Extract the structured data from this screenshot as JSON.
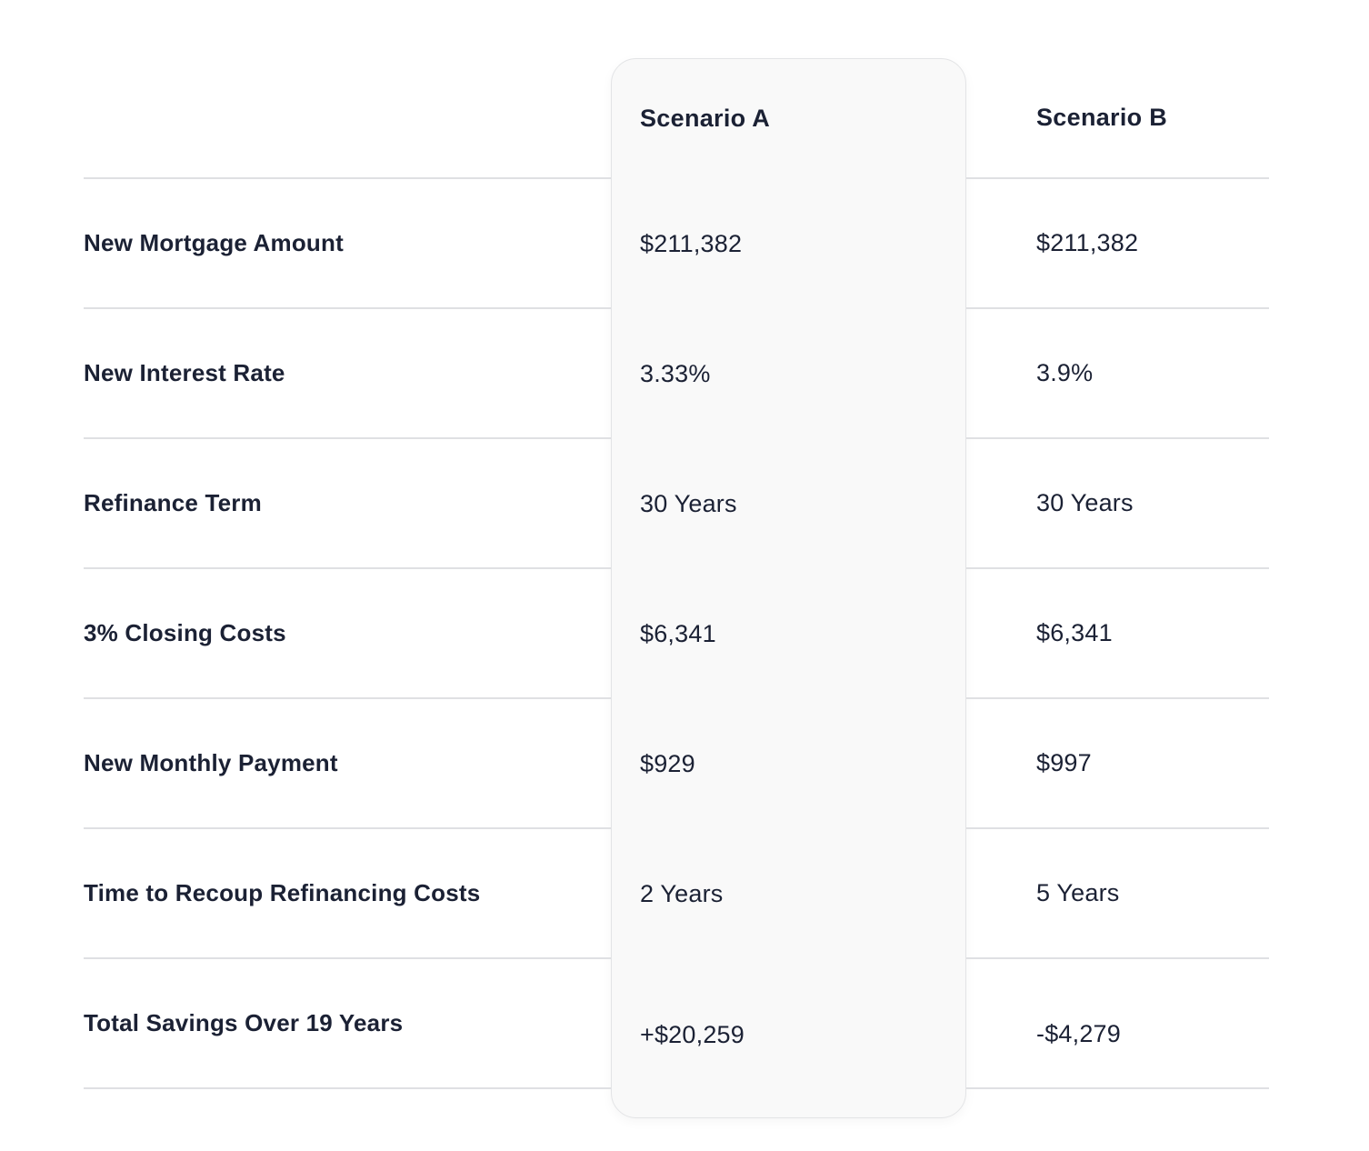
{
  "table": {
    "columns": [
      {
        "id": "scenario_a",
        "label": "Scenario A",
        "highlighted": true
      },
      {
        "id": "scenario_b",
        "label": "Scenario B",
        "highlighted": false
      }
    ],
    "rows": [
      {
        "label": "New Mortgage Amount",
        "scenario_a": "$211,382",
        "scenario_b": "$211,382"
      },
      {
        "label": "New Interest Rate",
        "scenario_a": "3.33%",
        "scenario_b": "3.9%"
      },
      {
        "label": "Refinance Term",
        "scenario_a": "30 Years",
        "scenario_b": "30 Years"
      },
      {
        "label": "3% Closing Costs",
        "scenario_a": "$6,341",
        "scenario_b": "$6,341"
      },
      {
        "label": "New Monthly Payment",
        "scenario_a": "$929",
        "scenario_b": "$997"
      },
      {
        "label": "Time to Recoup Refinancing Costs",
        "scenario_a": "2 Years",
        "scenario_b": "5 Years"
      },
      {
        "label": "Total Savings Over 19 Years",
        "scenario_a": "+$20,259",
        "scenario_b": "-$4,279"
      }
    ]
  },
  "colors": {
    "text": "#1b2134",
    "divider": "#dfe0e3",
    "card_background": "#f9f9f9",
    "card_border": "#e3e4e6",
    "page_background": "#ffffff"
  }
}
